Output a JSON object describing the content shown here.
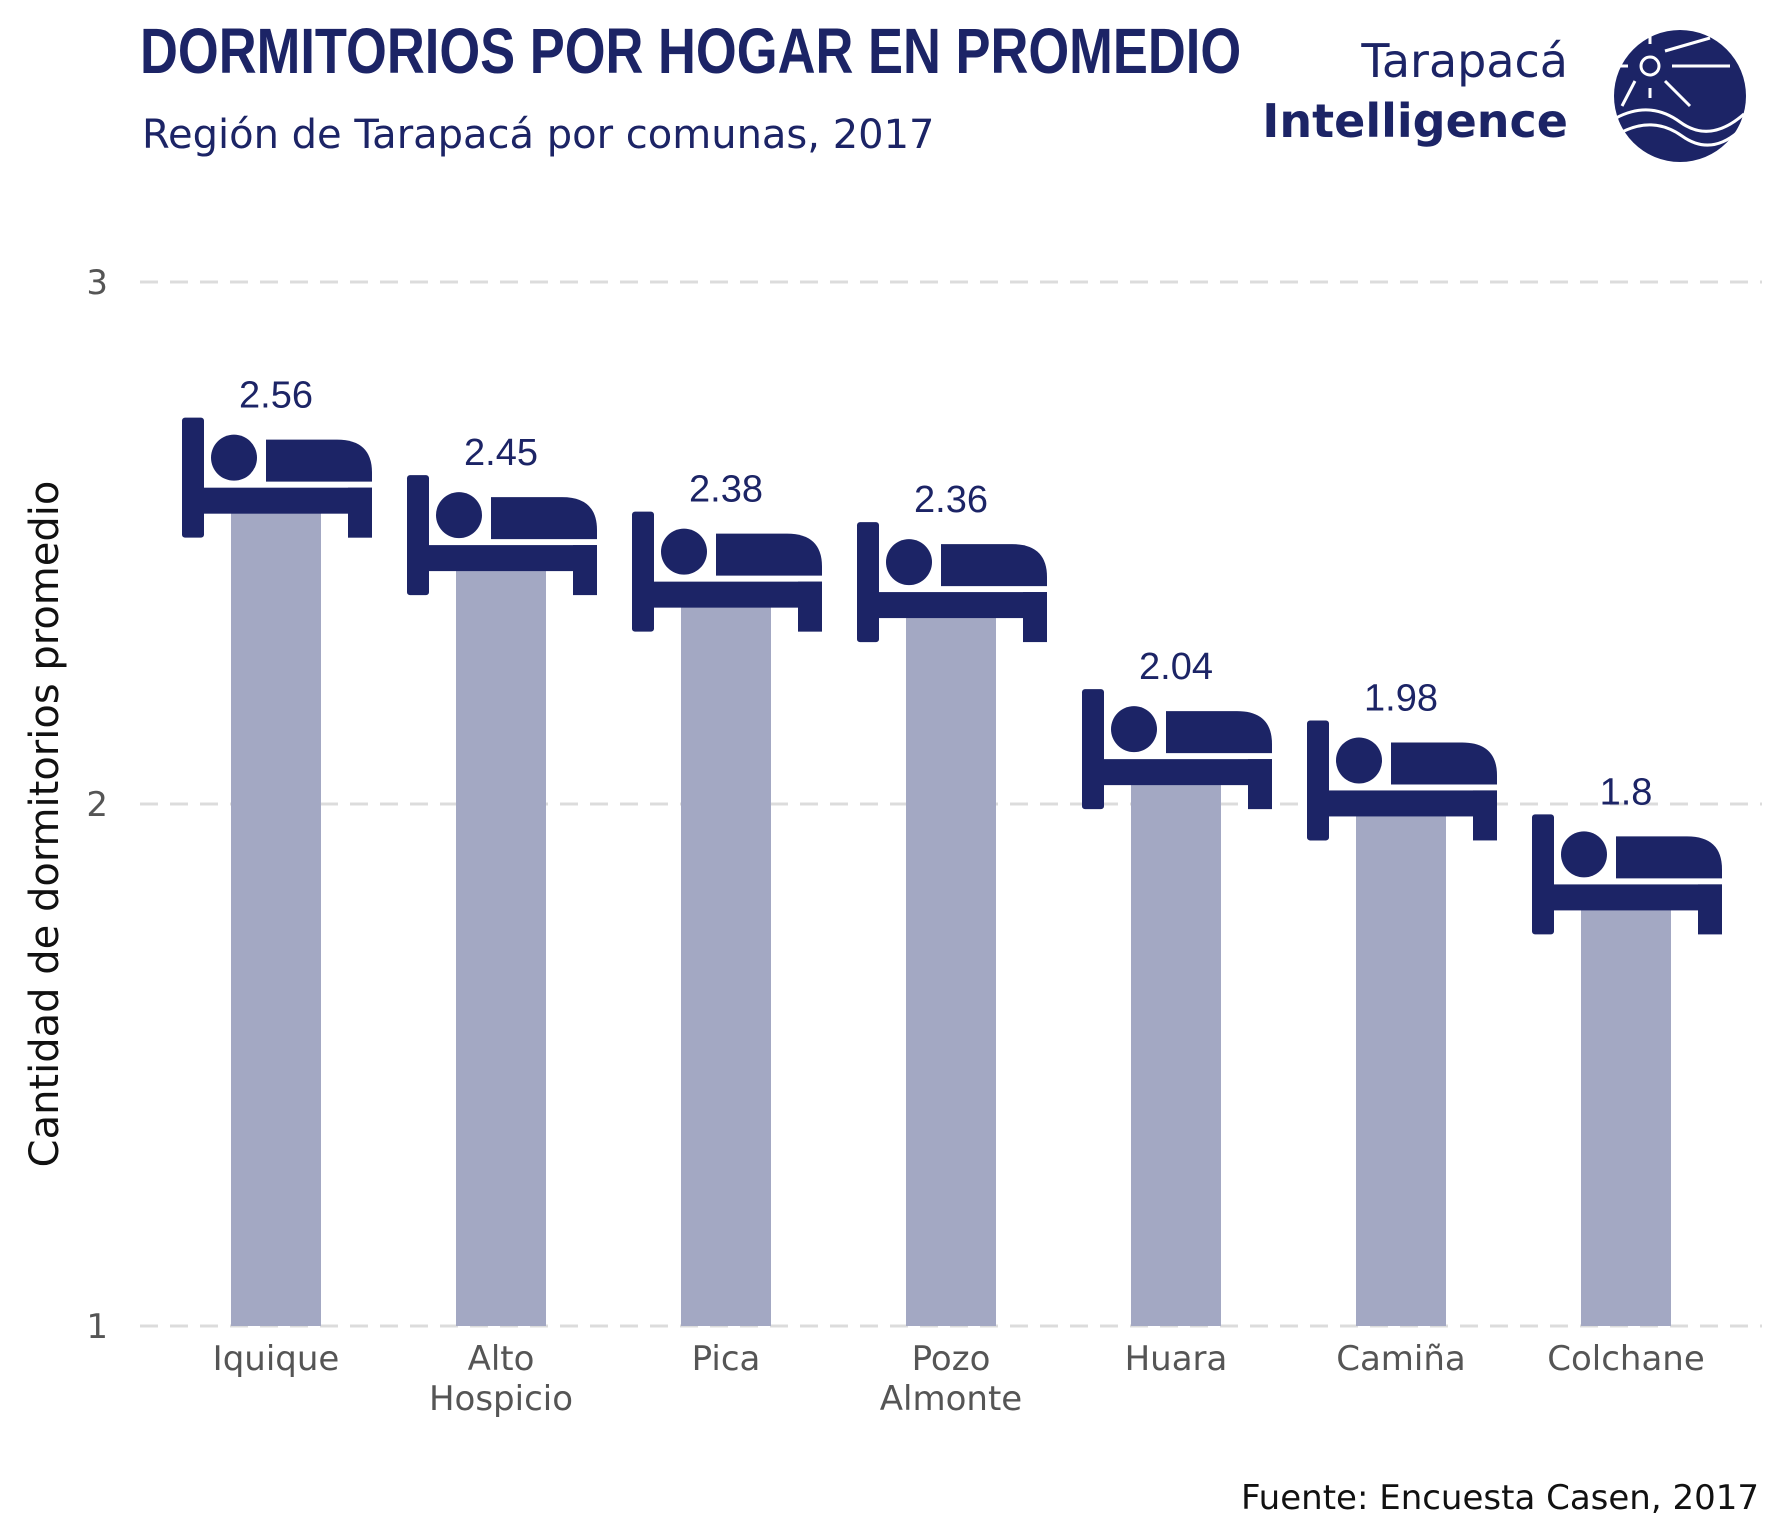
{
  "header": {
    "title": "DORMITORIOS POR HOGAR EN PROMEDIO",
    "subtitle": "Región de Tarapacá por comunas, 2017"
  },
  "logo": {
    "line1": "Tarapacá",
    "line2": "Intelligence"
  },
  "source": "Fuente: Encuesta Casen, 2017",
  "colors": {
    "bar": "#a3a8c3",
    "icon": "#1c2466",
    "grid": "#dcdcdc",
    "label": "#1c2466"
  },
  "chart_data": {
    "type": "bar",
    "categories": [
      "Iquique",
      "Alto\nHospicio",
      "Pica",
      "Pozo\nAlmonte",
      "Huara",
      "Camiña",
      "Colchane"
    ],
    "values": [
      2.56,
      2.45,
      2.38,
      2.36,
      2.04,
      1.98,
      1.8
    ],
    "value_labels": [
      "2.56",
      "2.45",
      "2.38",
      "2.36",
      "2.04",
      "1.98",
      "1.8"
    ],
    "ylabel": "Cantidad de dormitorios promedio",
    "xlabel": "",
    "ylim": [
      1,
      3
    ],
    "yticks": [
      "1",
      "2",
      "3"
    ],
    "grid": "horizontal dashed",
    "marker_icon": "bed-icon"
  }
}
